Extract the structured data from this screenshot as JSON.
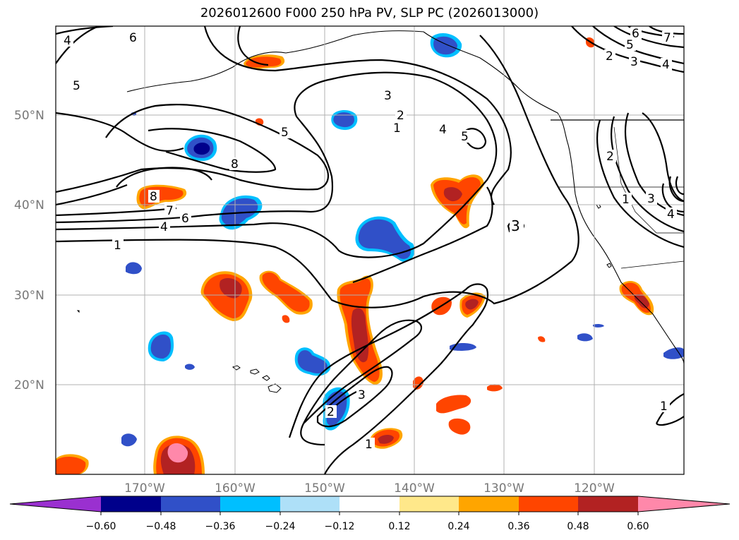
{
  "title": "2026012600 F000 250 hPa PV, SLP PC (2026013000)",
  "latitude_labels": [
    "50°N",
    "40°N",
    "30°N",
    "20°N"
  ],
  "longitude_labels": [
    "170°W",
    "160°W",
    "150°W",
    "140°W",
    "130°W",
    "120°W"
  ],
  "colorbar": {
    "colors": [
      "#9a30d0",
      "#00008b",
      "#3050c8",
      "#00bfff",
      "#aee0f8",
      "#ffffff",
      "#ffe88a",
      "#ffa500",
      "#ff4500",
      "#b22222",
      "#ff88aa"
    ],
    "tick_labels": [
      "−0.60",
      "−0.48",
      "−0.36",
      "−0.24",
      "−0.12",
      "0.12",
      "0.24",
      "0.36",
      "0.48",
      "0.60"
    ]
  },
  "contour_labels": [
    "1",
    "2",
    "3",
    "4",
    "5",
    "6",
    "7",
    "8"
  ]
}
